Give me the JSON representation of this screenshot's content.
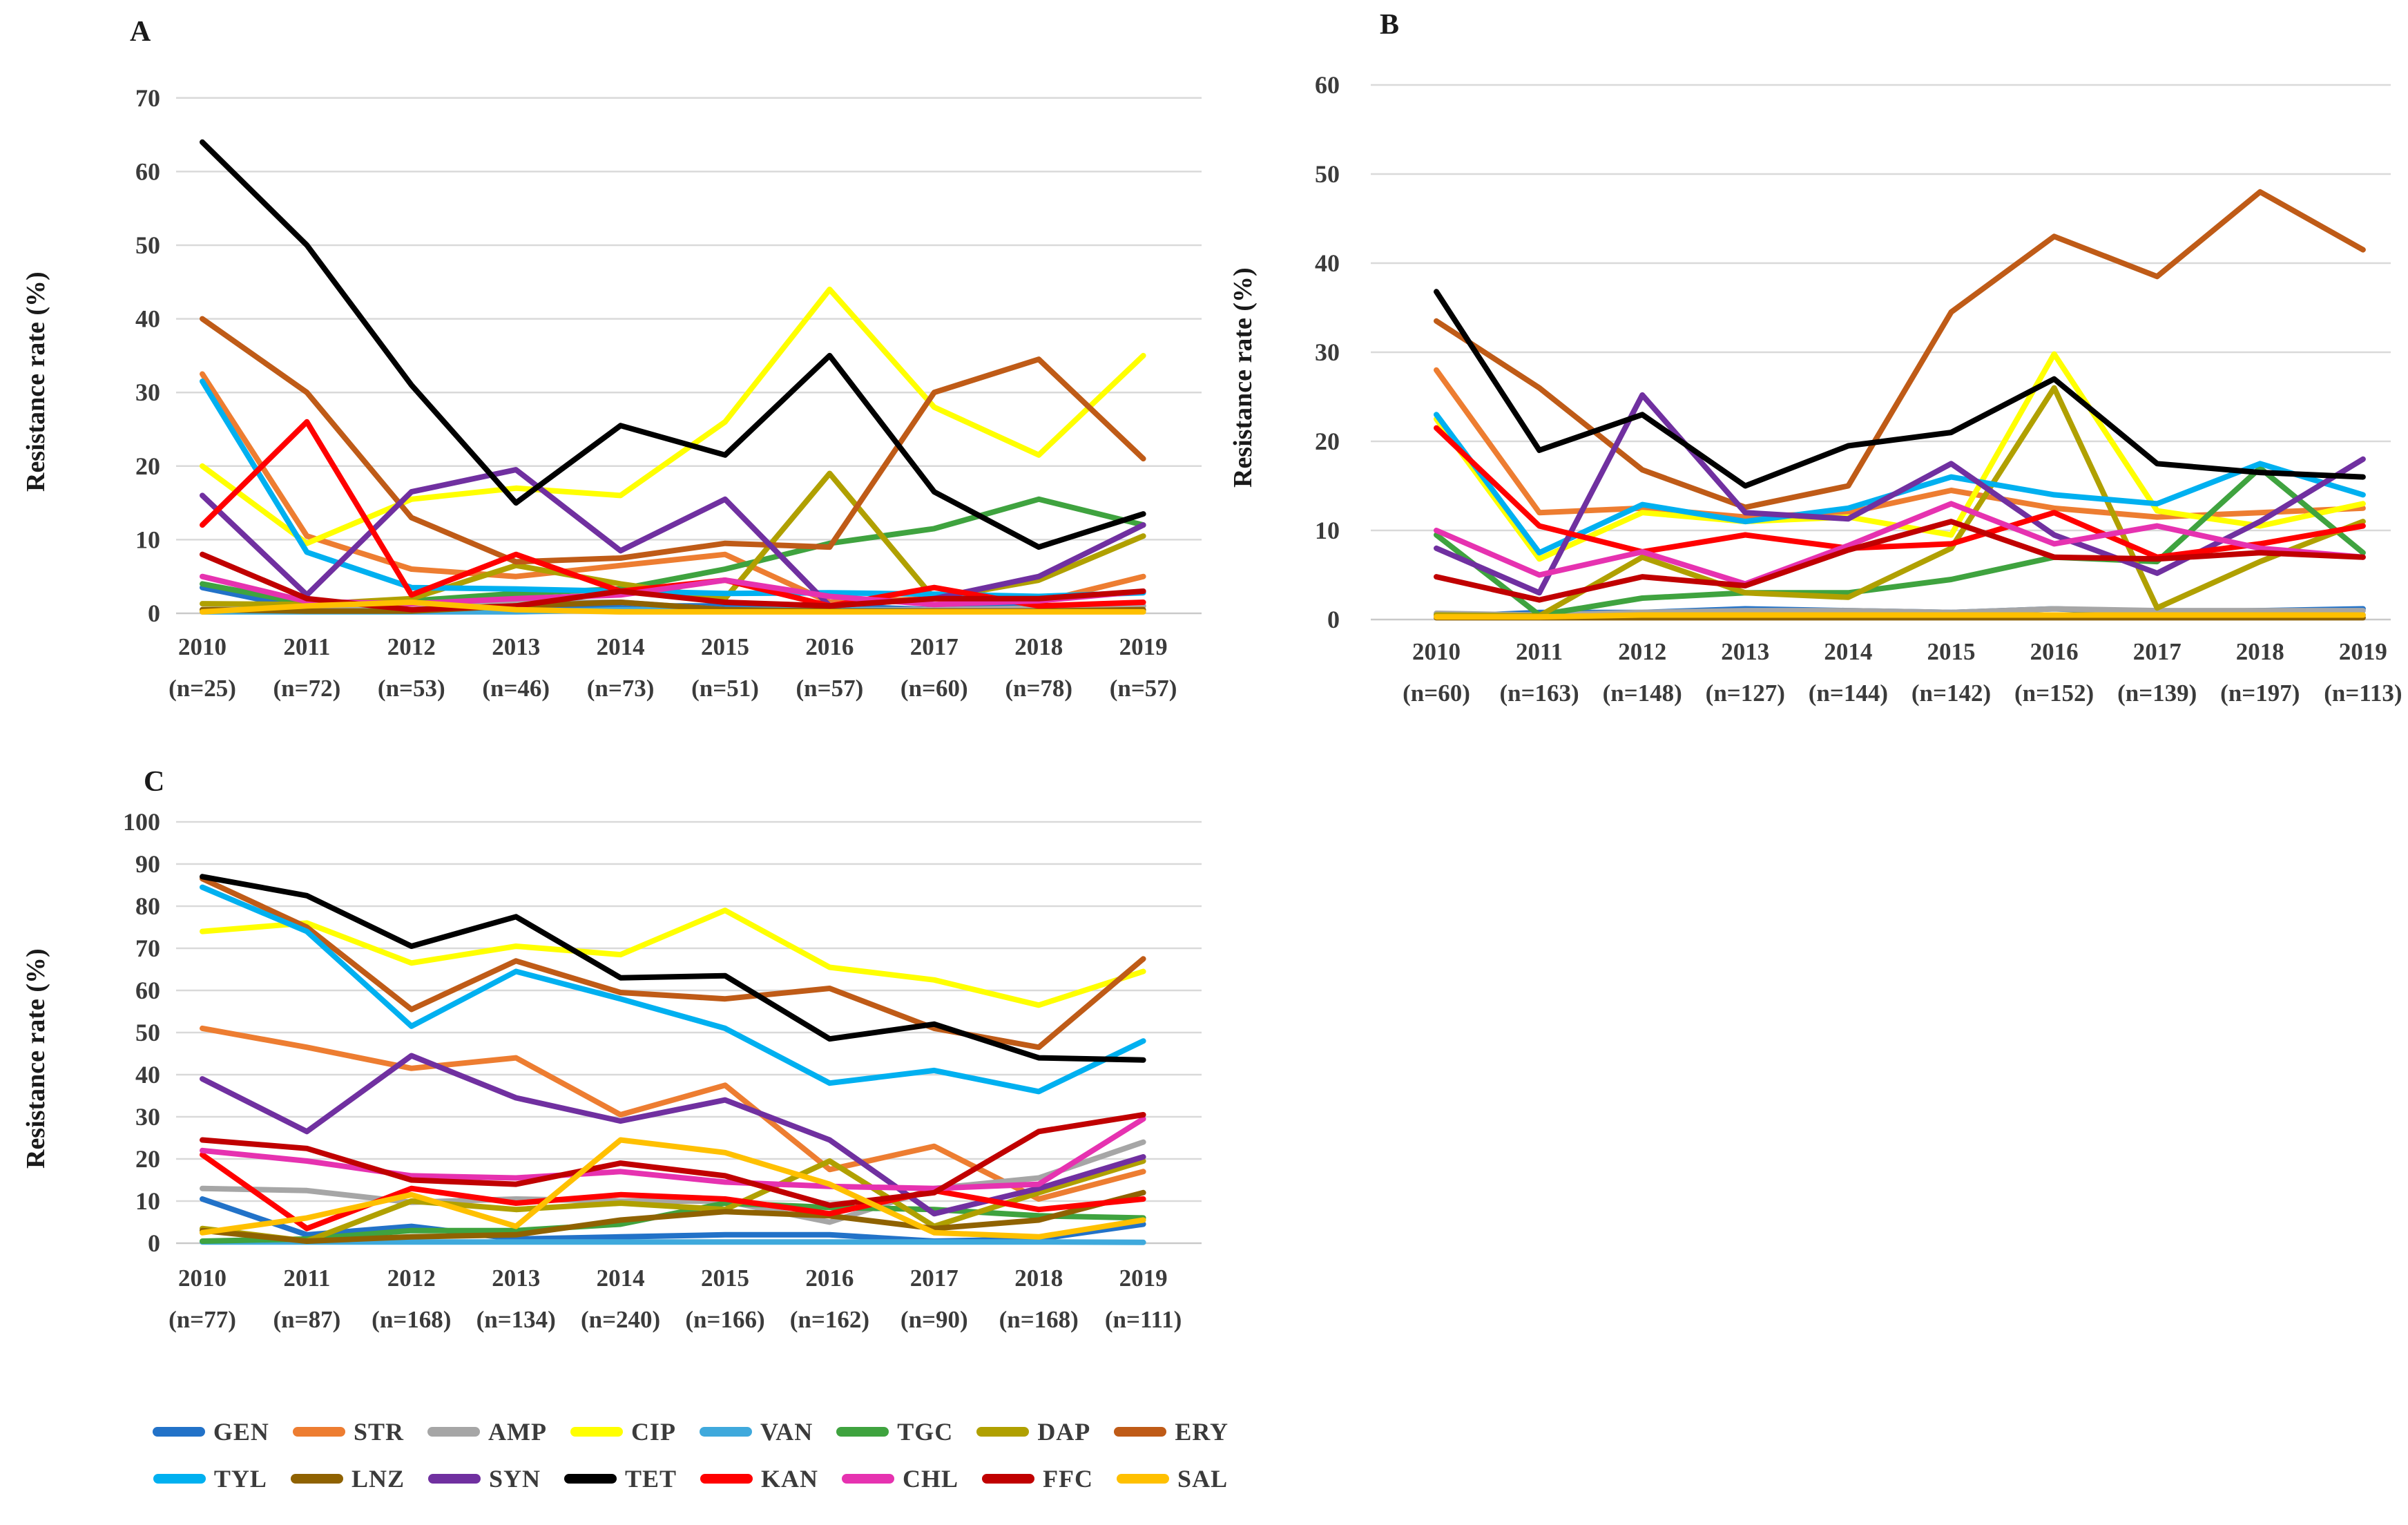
{
  "figure_title": "",
  "panels": [
    {
      "panel_label": "A",
      "ylabel": "Resistance rate (%)"
    },
    {
      "panel_label": "B",
      "ylabel": "Resistance rate (%)"
    },
    {
      "panel_label": "C",
      "ylabel": "Resistance rate (%)"
    }
  ],
  "legend": {
    "rows": [
      [
        "GEN",
        "STR",
        "AMP",
        "CIP",
        "VAN",
        "TGC",
        "DAP",
        "ERY"
      ],
      [
        "TYL",
        "LNZ",
        "SYN",
        "TET",
        "KAN",
        "CHL",
        "FFC",
        "SAL"
      ]
    ]
  },
  "colors": {
    "GEN": "#2272C8",
    "STR": "#ED7D31",
    "AMP": "#A6A6A6",
    "CIP": "#FFFF00",
    "VAN": "#3FA9DC",
    "TGC": "#3FA33F",
    "DAP": "#B0A000",
    "ERY": "#BF5B17",
    "TYL": "#00B0F0",
    "LNZ": "#8F6201",
    "SYN": "#7030A0",
    "TET": "#000000",
    "KAN": "#FF0000",
    "CHL": "#E632B0",
    "FFC": "#C00000",
    "SAL": "#FFC000",
    "gridline": "#D9D9D9"
  },
  "chart_data": [
    {
      "id": "A",
      "type": "line",
      "panel_label": "A",
      "title": "",
      "xlabel": "",
      "ylabel": "Resistance rate (%)",
      "ylim": [
        0,
        70
      ],
      "yticks": [
        0,
        10,
        20,
        30,
        40,
        50,
        60,
        70
      ],
      "grid": true,
      "legend_position": "bottom-shared",
      "categories": [
        "2010",
        "2011",
        "2012",
        "2013",
        "2014",
        "2015",
        "2016",
        "2017",
        "2018",
        "2019"
      ],
      "x_sublabels": [
        "(n=25)",
        "(n=72)",
        "(n=53)",
        "(n=46)",
        "(n=73)",
        "(n=51)",
        "(n=57)",
        "(n=60)",
        "(n=78)",
        "(n=57)"
      ],
      "series": [
        {
          "name": "GEN",
          "values": [
            3.5,
            0.6,
            0.5,
            0.5,
            1,
            1,
            1,
            0.5,
            1,
            1
          ]
        },
        {
          "name": "STR",
          "values": [
            32.5,
            10.5,
            6,
            5,
            6.5,
            8,
            1.5,
            2,
            1.5,
            5
          ]
        },
        {
          "name": "AMP",
          "values": [
            0.5,
            1,
            0.5,
            1.5,
            1.5,
            0.5,
            0.5,
            0.5,
            0.7,
            1
          ]
        },
        {
          "name": "CIP",
          "values": [
            20,
            9.5,
            15.5,
            17,
            16,
            26,
            44,
            28,
            21.5,
            35
          ]
        },
        {
          "name": "VAN",
          "values": [
            0.2,
            0.2,
            0.2,
            0.2,
            0.5,
            0.5,
            0.5,
            0.3,
            0.3,
            0.3
          ]
        },
        {
          "name": "TGC",
          "values": [
            4,
            1.3,
            1.7,
            2.7,
            3.3,
            6,
            9.5,
            11.5,
            15.5,
            12
          ]
        },
        {
          "name": "DAP",
          "values": [
            1.3,
            1.2,
            2,
            6.5,
            4,
            2,
            19,
            2,
            4.5,
            10.5
          ]
        },
        {
          "name": "ERY",
          "values": [
            40,
            30,
            13,
            7,
            7.5,
            9.5,
            9,
            30,
            34.5,
            21
          ]
        },
        {
          "name": "TYL",
          "values": [
            31.5,
            8.3,
            3.5,
            3.3,
            3,
            2.7,
            2.8,
            2.6,
            2.3,
            2.8
          ]
        },
        {
          "name": "LNZ",
          "values": [
            0.5,
            0.3,
            0.3,
            1,
            1.5,
            0.5,
            0.3,
            0.3,
            0.3,
            0.5
          ]
        },
        {
          "name": "SYN",
          "values": [
            16,
            2.5,
            16.5,
            19.5,
            8.5,
            15.5,
            1,
            2,
            5,
            12
          ]
        },
        {
          "name": "TET",
          "values": [
            64,
            50,
            31,
            15,
            25.5,
            21.5,
            35,
            16.5,
            9,
            13.5
          ]
        },
        {
          "name": "KAN",
          "values": [
            12,
            26,
            2.5,
            8,
            3,
            4.5,
            1,
            3.5,
            1,
            1.5
          ]
        },
        {
          "name": "CHL",
          "values": [
            5,
            1.6,
            1.3,
            2,
            2.5,
            4.5,
            2.3,
            1.2,
            1.7,
            3
          ]
        },
        {
          "name": "FFC",
          "values": [
            8,
            2,
            0.5,
            1,
            3,
            1.5,
            1,
            2,
            2,
            3
          ]
        },
        {
          "name": "SAL",
          "values": [
            0.2,
            1,
            1.5,
            0.5,
            0.2,
            0.2,
            0.2,
            0.2,
            0.2,
            0.2
          ]
        }
      ]
    },
    {
      "id": "B",
      "type": "line",
      "panel_label": "B",
      "title": "",
      "xlabel": "",
      "ylabel": "Resistance rate (%)",
      "ylim": [
        0,
        60
      ],
      "yticks": [
        0,
        10,
        20,
        30,
        40,
        50,
        60
      ],
      "grid": true,
      "legend_position": "bottom-shared",
      "categories": [
        "2010",
        "2011",
        "2012",
        "2013",
        "2014",
        "2015",
        "2016",
        "2017",
        "2018",
        "2019"
      ],
      "x_sublabels": [
        "(n=60)",
        "(n=163)",
        "(n=148)",
        "(n=127)",
        "(n=144)",
        "(n=142)",
        "(n=152)",
        "(n=139)",
        "(n=197)",
        "(n=113)"
      ],
      "series": [
        {
          "name": "GEN",
          "values": [
            0.3,
            0.8,
            0.8,
            1.2,
            1,
            0.8,
            1.2,
            0.8,
            1,
            1.2
          ]
        },
        {
          "name": "STR",
          "values": [
            28,
            12,
            12.5,
            11.5,
            12,
            14.5,
            12.5,
            11.5,
            12,
            12.5
          ]
        },
        {
          "name": "AMP",
          "values": [
            0.7,
            0.5,
            0.8,
            1,
            1,
            0.8,
            1.2,
            1,
            1,
            1
          ]
        },
        {
          "name": "CIP",
          "values": [
            22.5,
            6.8,
            12,
            11,
            11.5,
            9.5,
            29.8,
            12.2,
            10.5,
            13
          ]
        },
        {
          "name": "VAN",
          "values": [
            0.5,
            0.3,
            0.3,
            0.5,
            0.5,
            0.5,
            0.5,
            0.5,
            0.5,
            0.5
          ]
        },
        {
          "name": "TGC",
          "values": [
            9.5,
            0.5,
            2.4,
            3,
            3,
            4.5,
            7,
            6.5,
            17,
            7.5
          ]
        },
        {
          "name": "DAP",
          "values": [
            0.5,
            0.4,
            7,
            3,
            2.5,
            8,
            26,
            1.3,
            6.5,
            11
          ]
        },
        {
          "name": "ERY",
          "values": [
            33.5,
            26,
            16.8,
            12.6,
            15,
            34.5,
            43,
            38.5,
            48,
            41.5
          ]
        },
        {
          "name": "TYL",
          "values": [
            23,
            7.5,
            12.9,
            11,
            12.5,
            16,
            14,
            13,
            17.5,
            14
          ]
        },
        {
          "name": "LNZ",
          "values": [
            0.2,
            0.2,
            0.2,
            0.2,
            0.2,
            0.2,
            0.2,
            0.2,
            0.2,
            0.2
          ]
        },
        {
          "name": "SYN",
          "values": [
            8,
            3,
            25.2,
            12,
            11.3,
            17.5,
            9.5,
            5.2,
            11,
            18
          ]
        },
        {
          "name": "TET",
          "values": [
            36.8,
            19,
            23,
            15,
            19.5,
            21,
            27,
            17.5,
            16.5,
            16
          ]
        },
        {
          "name": "KAN",
          "values": [
            21.5,
            10.5,
            7.6,
            9.5,
            8,
            8.5,
            12,
            7,
            8.5,
            10.5
          ]
        },
        {
          "name": "CHL",
          "values": [
            10,
            5,
            7.6,
            4,
            8.3,
            13,
            8.5,
            10.5,
            8,
            7
          ]
        },
        {
          "name": "FFC",
          "values": [
            4.8,
            2.2,
            4.8,
            3.8,
            7.8,
            11,
            7,
            6.8,
            7.5,
            7
          ]
        },
        {
          "name": "SAL",
          "values": [
            0.3,
            0.3,
            0.5,
            0.5,
            0.5,
            0.5,
            0.5,
            0.5,
            0.5,
            0.5
          ]
        }
      ]
    },
    {
      "id": "C",
      "type": "line",
      "panel_label": "C",
      "title": "",
      "xlabel": "",
      "ylabel": "Resistance rate (%)",
      "ylim": [
        0,
        100
      ],
      "yticks": [
        0,
        10,
        20,
        30,
        40,
        50,
        60,
        70,
        80,
        90,
        100
      ],
      "grid": true,
      "legend_position": "bottom-shared",
      "categories": [
        "2010",
        "2011",
        "2012",
        "2013",
        "2014",
        "2015",
        "2016",
        "2017",
        "2018",
        "2019"
      ],
      "x_sublabels": [
        "(n=77)",
        "(n=87)",
        "(n=168)",
        "(n=134)",
        "(n=240)",
        "(n=166)",
        "(n=162)",
        "(n=90)",
        "(n=168)",
        "(n=111)"
      ],
      "series": [
        {
          "name": "GEN",
          "values": [
            10.5,
            2,
            4,
            1,
            1.5,
            2,
            2,
            0.5,
            1,
            4.5
          ]
        },
        {
          "name": "STR",
          "values": [
            51,
            46.5,
            41.5,
            44,
            30.5,
            37.5,
            17.5,
            23,
            10.5,
            17
          ]
        },
        {
          "name": "AMP",
          "values": [
            13,
            12.5,
            9.7,
            10.5,
            10,
            10,
            5,
            13,
            15.5,
            24
          ]
        },
        {
          "name": "CIP",
          "values": [
            74,
            76,
            66.5,
            70.5,
            68.5,
            79,
            65.5,
            62.5,
            56.5,
            64.5
          ]
        },
        {
          "name": "VAN",
          "values": [
            0.3,
            0.3,
            0.3,
            0.3,
            0.3,
            0.3,
            0.3,
            0.3,
            0.3,
            0.2
          ]
        },
        {
          "name": "TGC",
          "values": [
            0.5,
            1,
            3,
            3,
            4.5,
            9.5,
            8.5,
            8,
            6.5,
            6
          ]
        },
        {
          "name": "DAP",
          "values": [
            3.5,
            0.5,
            10,
            8,
            9.5,
            8,
            19.5,
            4,
            12,
            19.5
          ]
        },
        {
          "name": "ERY",
          "values": [
            86.5,
            75,
            55.5,
            67,
            59.5,
            58,
            60.5,
            51,
            46.5,
            67.5
          ]
        },
        {
          "name": "TYL",
          "values": [
            84.5,
            74,
            51.5,
            64.5,
            58,
            51,
            38,
            41,
            36,
            48
          ]
        },
        {
          "name": "LNZ",
          "values": [
            3,
            0.5,
            1.5,
            2,
            5.5,
            7.5,
            6.5,
            3.5,
            5.5,
            12
          ]
        },
        {
          "name": "SYN",
          "values": [
            39,
            26.5,
            44.5,
            34.5,
            29,
            34,
            24.5,
            7,
            13,
            20.5
          ]
        },
        {
          "name": "TET",
          "values": [
            87,
            82.5,
            70.5,
            77.5,
            63,
            63.5,
            48.5,
            52,
            44,
            43.5
          ]
        },
        {
          "name": "KAN",
          "values": [
            21,
            3.5,
            13,
            9.5,
            11.5,
            10.5,
            7,
            12.5,
            8,
            10.5
          ]
        },
        {
          "name": "CHL",
          "values": [
            22,
            19.5,
            16,
            15.5,
            17,
            14.5,
            13.5,
            13,
            14,
            29.5
          ]
        },
        {
          "name": "FFC",
          "values": [
            24.5,
            22.5,
            15,
            14,
            19,
            16,
            9,
            12,
            26.5,
            30.5
          ]
        },
        {
          "name": "SAL",
          "values": [
            2.5,
            6,
            11.5,
            4,
            24.5,
            21.5,
            14,
            2.5,
            1.5,
            5.5
          ]
        }
      ]
    }
  ]
}
